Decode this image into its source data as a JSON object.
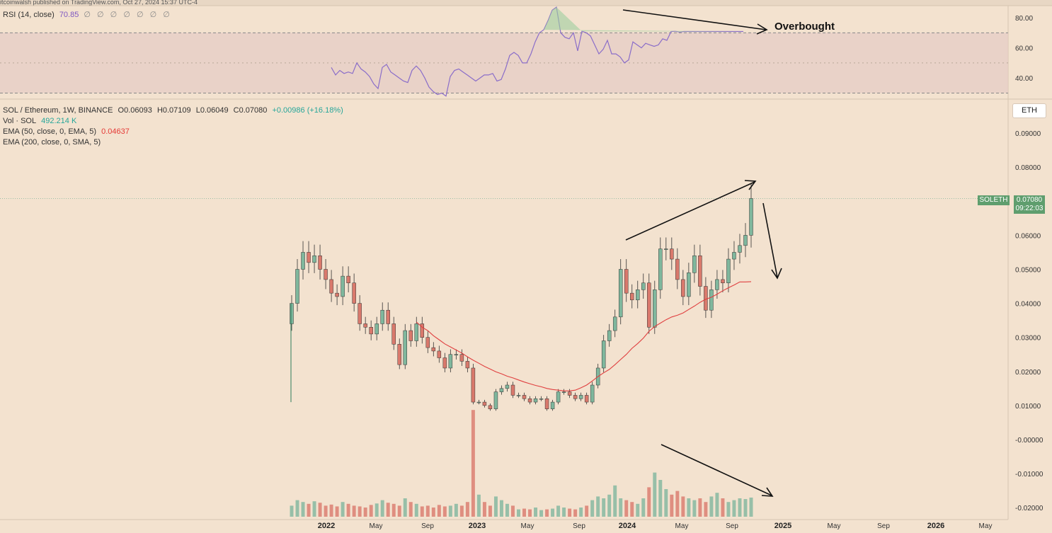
{
  "header": {
    "published_text": "itcoinwalsh published on TradingView.com, Oct 27, 2024 15:37 UTC-4"
  },
  "rsi_legend": {
    "name": "RSI (14, close)",
    "value": "70.85",
    "placeholders": "∅ ∅ ∅ ∅ ∅ ∅ ∅"
  },
  "main_legend": {
    "symbol": "SOL / Ethereum, 1W, BINANCE",
    "open": "O0.06093",
    "high": "H0.07109",
    "low": "L0.06049",
    "close": "C0.07080",
    "change": "+0.00986 (+16.18%)",
    "vol_label": "Vol · SOL",
    "vol_value": "492.214 K",
    "ema50_label": "EMA (50, close, 0, EMA, 5)",
    "ema50_value": "0.04637",
    "ema200_label": "EMA (200, close, 0, SMA, 5)"
  },
  "currency_button": "ETH",
  "last_price": {
    "symbol": "SOLETH",
    "price": "0.07080",
    "countdown": "09:22:03"
  },
  "annotation": "Overbought",
  "colors": {
    "up": "#7fb79d",
    "down": "#d9796c",
    "ema50": "#e04040",
    "rsi": "#8a6dc9",
    "background": "#f3e2cf"
  },
  "chart_data": [
    {
      "type": "line",
      "title": "RSI (14, close)",
      "x_ticks": [
        "2022",
        "May",
        "Sep",
        "2023",
        "May",
        "Sep",
        "2024",
        "May",
        "Sep",
        "2025",
        "May",
        "Sep",
        "2026",
        "May"
      ],
      "y_ticks": [
        "80.00",
        "60.00",
        "40.00"
      ],
      "ylim": [
        26,
        88
      ],
      "bands": {
        "upper": 70,
        "lower": 30
      },
      "x": [
        0,
        2,
        4,
        6,
        8,
        10,
        12,
        14,
        16,
        18,
        20,
        22,
        24,
        26,
        28,
        30,
        32,
        34,
        36,
        38,
        40,
        42,
        44,
        46,
        48,
        50,
        52,
        54,
        56,
        58,
        60,
        62,
        64,
        66,
        68,
        70,
        72,
        74,
        76,
        78,
        80,
        82,
        84,
        86,
        88,
        90,
        92,
        94,
        96,
        98,
        100,
        102,
        104,
        106,
        108,
        110,
        112,
        114,
        116,
        118,
        120,
        122,
        124,
        126,
        128,
        130,
        132,
        134,
        136,
        138,
        140,
        142,
        144,
        146,
        148,
        150,
        152,
        154,
        156,
        158,
        160,
        162,
        164,
        166,
        168,
        170,
        172,
        174,
        176,
        178,
        180,
        182,
        184,
        186,
        188,
        190,
        192,
        194
      ],
      "values": [
        47,
        42,
        45,
        43,
        44,
        43,
        50,
        46,
        44,
        41,
        36,
        33,
        47,
        49,
        44,
        42,
        40,
        38,
        37,
        45,
        48,
        45,
        40,
        34,
        31,
        29,
        30,
        28,
        41,
        45,
        46,
        44,
        42,
        40,
        38,
        40,
        42,
        42,
        43,
        38,
        39,
        46,
        55,
        57,
        55,
        50,
        50,
        56,
        64,
        70,
        72,
        78,
        85,
        87,
        70,
        67,
        66,
        70,
        58,
        71,
        70,
        68,
        62,
        56,
        59,
        65,
        56,
        56,
        54,
        50,
        52,
        64,
        62,
        60,
        63,
        62,
        61,
        62,
        66,
        65,
        70.85,
        71,
        70.5,
        70.85,
        70.85,
        70.85,
        70.85,
        70.85,
        70.85,
        70.85,
        70.85,
        70.85,
        70.85,
        70.85,
        70.85,
        70.85,
        70.85,
        70.85
      ]
    },
    {
      "type": "candlestick",
      "title": "SOL / Ethereum, 1W, BINANCE",
      "y_ticks": [
        "0.09000",
        "0.08000",
        "0.07000",
        "0.06000",
        "0.05000",
        "0.04000",
        "0.03000",
        "0.02000",
        "0.01000",
        "-0.00000",
        "-0.01000",
        "-0.02000"
      ],
      "ylim": [
        -0.0235,
        0.1
      ],
      "x_ticks": [
        "2022",
        "May",
        "Sep",
        "2023",
        "May",
        "Sep",
        "2024",
        "May",
        "Sep",
        "2025",
        "May",
        "Sep",
        "2026",
        "May"
      ],
      "closes": [
        0.04,
        0.05,
        0.055,
        0.052,
        0.054,
        0.05,
        0.047,
        0.043,
        0.042,
        0.048,
        0.046,
        0.04,
        0.034,
        0.033,
        0.031,
        0.034,
        0.038,
        0.034,
        0.028,
        0.022,
        0.032,
        0.029,
        0.034,
        0.03,
        0.027,
        0.026,
        0.024,
        0.021,
        0.025,
        0.025,
        0.023,
        0.021,
        0.011,
        0.011,
        0.01,
        0.009,
        0.014,
        0.015,
        0.016,
        0.013,
        0.013,
        0.012,
        0.011,
        0.012,
        0.012,
        0.009,
        0.011,
        0.014,
        0.014,
        0.013,
        0.012,
        0.013,
        0.011,
        0.016,
        0.021,
        0.029,
        0.032,
        0.036,
        0.05,
        0.043,
        0.041,
        0.044,
        0.046,
        0.033,
        0.044,
        0.056,
        0.056,
        0.053,
        0.047,
        0.042,
        0.049,
        0.054,
        0.045,
        0.038,
        0.044,
        0.047,
        0.046,
        0.053,
        0.055,
        0.057,
        0.06,
        0.0708
      ],
      "volumes": [
        0.3,
        0.45,
        0.4,
        0.35,
        0.42,
        0.38,
        0.3,
        0.33,
        0.28,
        0.4,
        0.35,
        0.3,
        0.28,
        0.25,
        0.32,
        0.36,
        0.45,
        0.38,
        0.35,
        0.3,
        0.5,
        0.4,
        0.35,
        0.28,
        0.3,
        0.25,
        0.32,
        0.28,
        0.3,
        0.35,
        0.3,
        0.4,
        2.9,
        0.6,
        0.4,
        0.3,
        0.55,
        0.45,
        0.35,
        0.3,
        0.2,
        0.22,
        0.2,
        0.25,
        0.18,
        0.2,
        0.22,
        0.3,
        0.25,
        0.22,
        0.2,
        0.25,
        0.3,
        0.45,
        0.55,
        0.5,
        0.6,
        0.85,
        0.5,
        0.45,
        0.4,
        0.35,
        0.5,
        0.8,
        1.2,
        1.0,
        0.75,
        0.6,
        0.7,
        0.55,
        0.5,
        0.45,
        0.5,
        0.4,
        0.55,
        0.65,
        0.5,
        0.4,
        0.45,
        0.5,
        0.48,
        0.52
      ],
      "ema50": [
        null,
        null,
        null,
        null,
        null,
        null,
        null,
        null,
        null,
        null,
        null,
        null,
        null,
        null,
        null,
        null,
        null,
        null,
        null,
        null,
        null,
        null,
        0.0345,
        0.033,
        0.032,
        0.0305,
        0.0293,
        0.0281,
        0.0272,
        0.0263,
        0.0254,
        0.0243,
        0.0233,
        0.0224,
        0.0215,
        0.0207,
        0.0199,
        0.0193,
        0.0186,
        0.0181,
        0.0175,
        0.0169,
        0.0164,
        0.0159,
        0.0155,
        0.015,
        0.0147,
        0.0145,
        0.0143,
        0.0143,
        0.0145,
        0.0152,
        0.016,
        0.0172,
        0.0185,
        0.0196,
        0.0206,
        0.022,
        0.0235,
        0.025,
        0.0268,
        0.0282,
        0.0298,
        0.0318,
        0.0332,
        0.0342,
        0.0352,
        0.036,
        0.0365,
        0.0372,
        0.0382,
        0.0392,
        0.0403,
        0.0412,
        0.0418,
        0.0427,
        0.0437,
        0.0446,
        0.0454,
        0.0463,
        0.0463,
        0.04637
      ]
    }
  ]
}
